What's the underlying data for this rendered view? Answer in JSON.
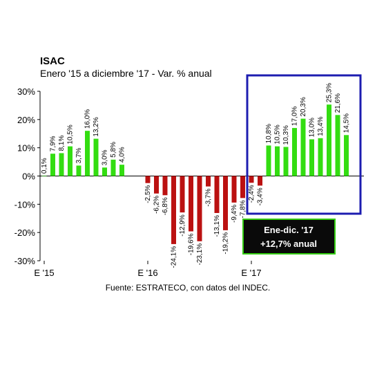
{
  "chart_data": {
    "type": "bar",
    "title": "ISAC",
    "subtitle": "Enero '15 a diciembre '17 - Var. % anual",
    "source": "Fuente: ESTRATECO, con datos del INDEC.",
    "ylim": [
      -30,
      30
    ],
    "yticks": [
      30,
      20,
      10,
      0,
      -10,
      -20,
      -30
    ],
    "ytick_labels": [
      "30%",
      "20%",
      "10%",
      "0%",
      "-10%",
      "-20%",
      "-30%"
    ],
    "xtick_labels": [
      "E '15",
      "E '16",
      "E '17"
    ],
    "grid": false,
    "colors": {
      "positive": "#33dd11",
      "negative": "#bb1111",
      "highlight_box": "#1c1cb0",
      "callout_bg": "#0a0a0a",
      "callout_border": "#33cc11"
    },
    "categories": [
      "Ene-15",
      "Feb-15",
      "Mar-15",
      "Abr-15",
      "May-15",
      "Jun-15",
      "Jul-15",
      "Ago-15",
      "Sep-15",
      "Oct-15",
      "Nov-15",
      "Dic-15",
      "Ene-16",
      "Feb-16",
      "Mar-16",
      "Abr-16",
      "May-16",
      "Jun-16",
      "Jul-16",
      "Ago-16",
      "Sep-16",
      "Oct-16",
      "Nov-16",
      "Dic-16",
      "Ene-17",
      "Feb-17",
      "Mar-17",
      "Abr-17",
      "May-17",
      "Jun-17",
      "Jul-17",
      "Ago-17",
      "Sep-17",
      "Oct-17",
      "Nov-17",
      "Dic-17"
    ],
    "values": [
      0.1,
      7.9,
      8.1,
      10.5,
      3.7,
      16.0,
      13.2,
      3.0,
      5.8,
      4.0,
      0,
      0,
      -2.5,
      -6.2,
      -6.8,
      -24.1,
      -12.9,
      -19.6,
      -23.1,
      -3.7,
      -13.1,
      -19.2,
      -9.4,
      -7.8,
      -2.4,
      -3.4,
      10.8,
      10.5,
      10.3,
      17.0,
      20.3,
      13.0,
      13.4,
      25.3,
      21.6,
      14.5
    ],
    "data_labels": [
      "0,1%",
      "7,9%",
      "8,1%",
      "10,5%",
      "3,7%",
      "16,0%",
      "13,2%",
      "3,0%",
      "5,8%",
      "4,0%",
      "",
      "",
      "-2,5%",
      "-6,2%",
      "-6,8%",
      "-24,1%",
      "-12,9%",
      "-19,6%",
      "-23,1%",
      "-3,7%",
      "-13,1%",
      "-19,2%",
      "-9,4%",
      "-7,8%",
      "-2,4%",
      "-3,4%",
      "10,8%",
      "10,5%",
      "10,3%",
      "17,0%",
      "20,3%",
      "13,0%",
      "13,4%",
      "25,3%",
      "21,6%",
      "14,5%"
    ],
    "annotation": {
      "line1": "Ene-dic. '17",
      "line2": "+12,7% anual"
    }
  }
}
